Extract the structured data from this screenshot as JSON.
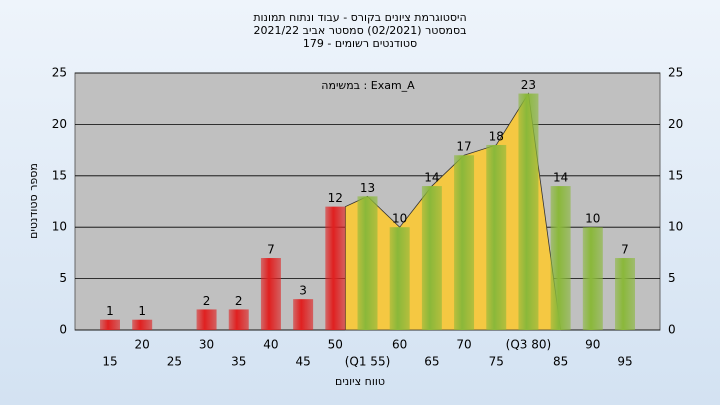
{
  "chart_data": {
    "type": "bar",
    "title": [
      "היסטוגרמת ציונים בקורס - עבוד ונתוח תמונות",
      "בסמסטר  (02/2021)  סמסטר אביב 2021/22",
      "סטודנטים רשומים - 179"
    ],
    "annotation": "במשימה : Exam_A",
    "x_label": "טווח ציונים",
    "y_label": "מספר סטודנטים",
    "categories": [
      "15",
      "20",
      "25",
      "30",
      "35",
      "40",
      "45",
      "50",
      "(Q1 55)",
      "60",
      "65",
      "70",
      "75",
      "(Q3 80)",
      "85",
      "90",
      "95"
    ],
    "values": [
      1,
      1,
      null,
      2,
      2,
      7,
      3,
      12,
      13,
      10,
      14,
      17,
      18,
      23,
      14,
      10,
      7
    ],
    "colors": [
      "#e02020",
      "#e02020",
      "#e02020",
      "#e02020",
      "#e02020",
      "#e02020",
      "#e02020",
      "#e02020",
      "#8ab83a",
      "#8ab83a",
      "#8ab83a",
      "#8ab83a",
      "#8ab83a",
      "#8ab83a",
      "#8ab83a",
      "#8ab83a",
      "#8ab83a"
    ],
    "area_color": "#f5c842",
    "ylim": [
      0,
      25
    ],
    "yticks": [
      0,
      5,
      10,
      15,
      20,
      25
    ],
    "grid": true
  }
}
